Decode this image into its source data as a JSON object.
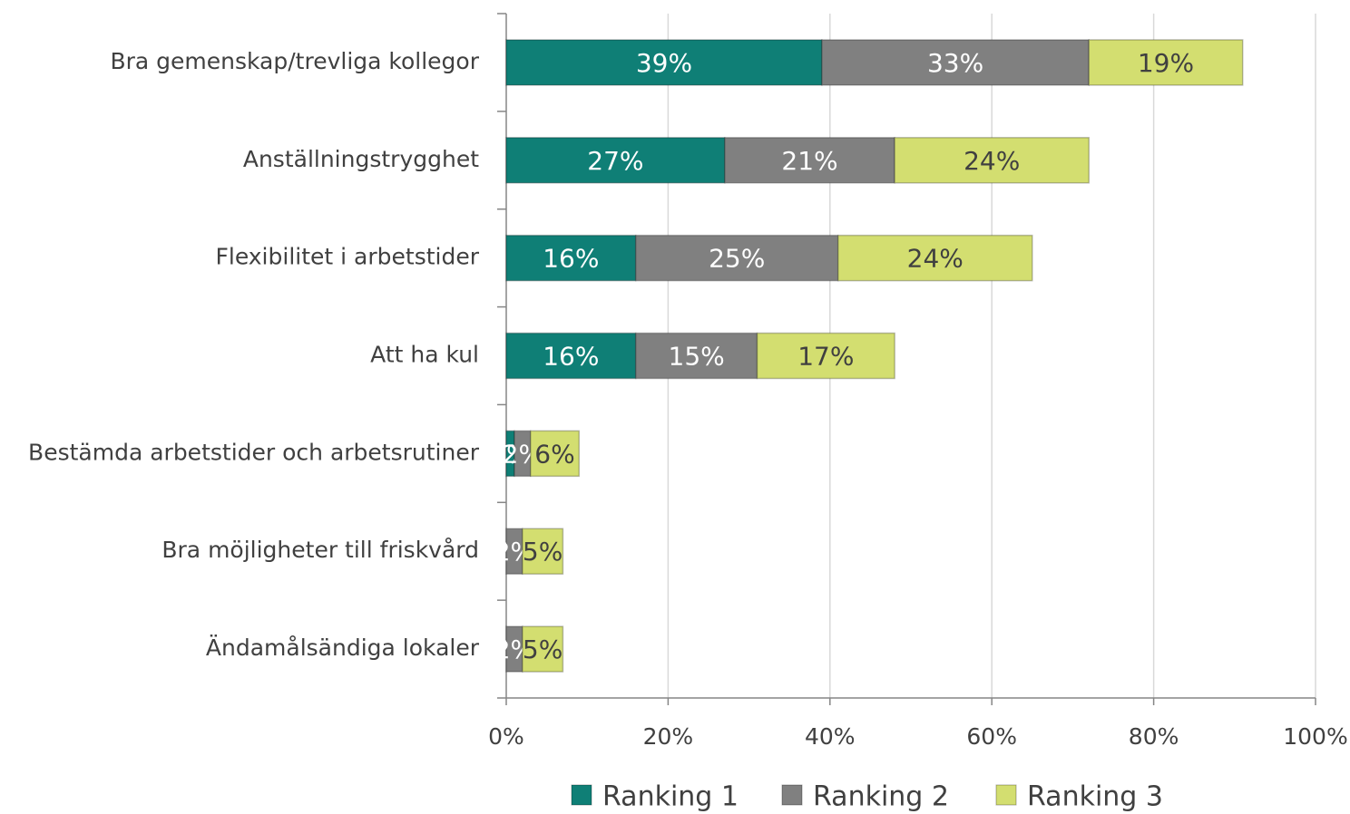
{
  "chart_data": {
    "type": "stacked-bar-horizontal",
    "categories": [
      "Bra gemenskap/trevliga kollegor",
      "Anställningstrygghet",
      "Flexibilitet i arbetstider",
      "Att ha kul",
      "Bestämda arbetstider och arbetsrutiner",
      "Bra möjligheter till friskvård",
      "Ändamålsändiga lokaler"
    ],
    "series": [
      {
        "name": "Ranking 1",
        "color": "#0f7f76",
        "values": [
          39,
          27,
          16,
          16,
          1,
          0,
          0
        ],
        "value_labels": [
          "39%",
          "27%",
          "16%",
          "16%",
          "1%",
          "0%",
          "0%"
        ]
      },
      {
        "name": "Ranking 2",
        "color": "#808080",
        "values": [
          33,
          21,
          25,
          15,
          2,
          2,
          2
        ],
        "value_labels": [
          "33%",
          "21%",
          "25%",
          "15%",
          "2%",
          "2%",
          "2%"
        ]
      },
      {
        "name": "Ranking 3",
        "color": "#d3de70",
        "values": [
          19,
          24,
          24,
          17,
          6,
          5,
          5
        ],
        "value_labels": [
          "19%",
          "24%",
          "24%",
          "17%",
          "6%",
          "5%",
          "5%"
        ]
      }
    ],
    "xlim": [
      0,
      100
    ],
    "xticks": [
      {
        "value": 0,
        "label": "0%"
      },
      {
        "value": 20,
        "label": "20%"
      },
      {
        "value": 40,
        "label": "40%"
      },
      {
        "value": 60,
        "label": "60%"
      },
      {
        "value": 80,
        "label": "80%"
      },
      {
        "value": 100,
        "label": "100%"
      }
    ],
    "grid": true,
    "legend": "bottom"
  }
}
